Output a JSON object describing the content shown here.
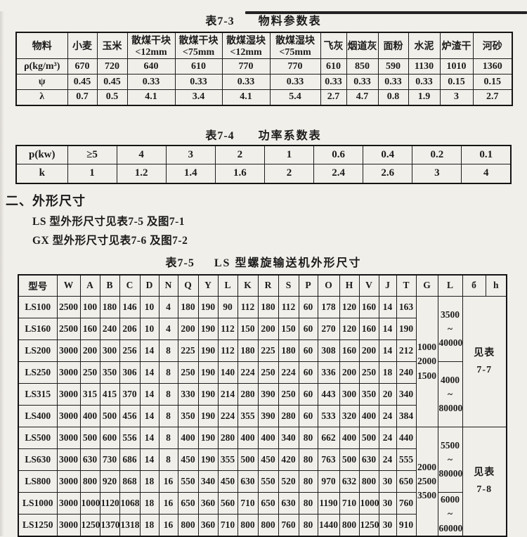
{
  "page": {
    "paper_color": "#f1efea",
    "ink_color": "#1b1b1b"
  },
  "table_7_3": {
    "caption_label": "表7-3",
    "caption_title": "物料参数表",
    "header": [
      [
        "物料"
      ],
      [
        "小麦"
      ],
      [
        "玉米"
      ],
      [
        "散煤干块",
        "<12mm"
      ],
      [
        "散煤干块",
        "<75mm"
      ],
      [
        "散煤湿块",
        "<12mm"
      ],
      [
        "散煤湿块",
        "<75mm"
      ],
      [
        "飞灰"
      ],
      [
        "烟道灰"
      ],
      [
        "面粉"
      ],
      [
        "水泥"
      ],
      [
        "炉渣干"
      ],
      [
        "河砂"
      ]
    ],
    "rows": [
      [
        "ρ(kg/m³)",
        "670",
        "720",
        "640",
        "610",
        "770",
        "770",
        "610",
        "850",
        "590",
        "1130",
        "1010",
        "1360"
      ],
      [
        "ψ",
        "0.45",
        "0.45",
        "0.33",
        "0.33",
        "0.33",
        "0.33",
        "0.33",
        "0.33",
        "0.33",
        "0.33",
        "0.15",
        "0.15"
      ],
      [
        "λ",
        "0.7",
        "0.5",
        "4.1",
        "3.4",
        "4.1",
        "5.4",
        "2.7",
        "4.7",
        "0.8",
        "1.9",
        "3",
        "2.7"
      ]
    ]
  },
  "table_7_4": {
    "caption_label": "表7-4",
    "caption_title": "功率系数表",
    "rows": [
      [
        "p(kw)",
        "≥5",
        "4",
        "3",
        "2",
        "1",
        "0.6",
        "0.4",
        "0.2",
        "0.1"
      ],
      [
        "k",
        "1",
        "1.2",
        "1.4",
        "1.6",
        "2",
        "2.4",
        "2.6",
        "3",
        "4"
      ]
    ]
  },
  "section": {
    "heading": "二、外形尺寸",
    "ref_ls": "LS 型外形尺寸见表7-5 及图7-1",
    "ref_gx": "GX 型外形尺寸见表7-6 及图7-2"
  },
  "table_7_5": {
    "caption_label": "表7-5",
    "caption_title": "LS 型螺旋输送机外形尺寸",
    "header": [
      "型号",
      "W",
      "A",
      "B",
      "C",
      "D",
      "N",
      "Q",
      "Y",
      "L",
      "K",
      "R",
      "S",
      "P",
      "O",
      "H",
      "V",
      "J",
      "T",
      "G",
      "L",
      "б",
      "h"
    ],
    "rows": [
      [
        "LS100",
        "2500",
        "100",
        "180",
        "146",
        "10",
        "4",
        "180",
        "190",
        "90",
        "112",
        "180",
        "112",
        "60",
        "178",
        "120",
        "160",
        "14",
        "163"
      ],
      [
        "LS160",
        "2500",
        "160",
        "240",
        "206",
        "10",
        "4",
        "200",
        "190",
        "112",
        "150",
        "200",
        "150",
        "60",
        "270",
        "120",
        "160",
        "14",
        "190"
      ],
      [
        "LS200",
        "3000",
        "200",
        "300",
        "256",
        "14",
        "8",
        "225",
        "190",
        "112",
        "180",
        "225",
        "180",
        "60",
        "308",
        "160",
        "200",
        "14",
        "212"
      ],
      [
        "LS250",
        "3000",
        "250",
        "350",
        "306",
        "14",
        "8",
        "250",
        "190",
        "140",
        "224",
        "250",
        "224",
        "60",
        "336",
        "200",
        "250",
        "18",
        "240"
      ],
      [
        "LS315",
        "3000",
        "315",
        "415",
        "370",
        "14",
        "8",
        "330",
        "190",
        "214",
        "280",
        "390",
        "250",
        "60",
        "443",
        "300",
        "350",
        "20",
        "340"
      ],
      [
        "LS400",
        "3000",
        "400",
        "500",
        "456",
        "14",
        "8",
        "350",
        "190",
        "224",
        "355",
        "390",
        "280",
        "60",
        "533",
        "320",
        "400",
        "24",
        "384"
      ],
      [
        "LS500",
        "3000",
        "500",
        "600",
        "556",
        "14",
        "8",
        "400",
        "190",
        "280",
        "400",
        "400",
        "340",
        "80",
        "662",
        "400",
        "500",
        "24",
        "440"
      ],
      [
        "LS630",
        "3000",
        "630",
        "730",
        "686",
        "14",
        "8",
        "450",
        "190",
        "355",
        "500",
        "450",
        "420",
        "80",
        "763",
        "500",
        "630",
        "24",
        "555"
      ],
      [
        "LS800",
        "3000",
        "800",
        "920",
        "868",
        "18",
        "16",
        "550",
        "340",
        "450",
        "630",
        "550",
        "520",
        "80",
        "970",
        "632",
        "800",
        "30",
        "650"
      ],
      [
        "LS1000",
        "3000",
        "1000",
        "1120",
        "1068",
        "18",
        "16",
        "650",
        "360",
        "560",
        "710",
        "650",
        "630",
        "80",
        "1190",
        "710",
        "1000",
        "30",
        "760"
      ],
      [
        "LS1250",
        "3000",
        "1250",
        "1370",
        "1318",
        "18",
        "16",
        "800",
        "360",
        "710",
        "800",
        "800",
        "760",
        "80",
        "1440",
        "800",
        "1250",
        "30",
        "910"
      ]
    ],
    "span_cells": [
      {
        "row": 0,
        "slot": 0,
        "rowspan": 6,
        "colspan": 1,
        "lines": [
          "1000",
          "2000",
          "1500"
        ],
        "kind": "span-cell",
        "name": "g-range-upper"
      },
      {
        "row": 0,
        "slot": 1,
        "rowspan": 3,
        "colspan": 1,
        "lines": [
          "3500",
          "~",
          "40000"
        ],
        "kind": "span-cell",
        "name": "length-range-1"
      },
      {
        "row": 0,
        "slot": 2,
        "rowspan": 6,
        "colspan": 2,
        "lines": [
          "见表",
          "7-7"
        ],
        "kind": "see-cell",
        "name": "see-table-7-7"
      },
      {
        "row": 3,
        "slot": 1,
        "rowspan": 3,
        "colspan": 1,
        "lines": [
          "4000",
          "~",
          "80000"
        ],
        "kind": "span-cell",
        "name": "length-range-2"
      },
      {
        "row": 6,
        "slot": 0,
        "rowspan": 5,
        "colspan": 1,
        "lines": [
          "2000",
          "2500",
          "3500"
        ],
        "kind": "span-cell",
        "name": "g-range-lower"
      },
      {
        "row": 6,
        "slot": 1,
        "rowspan": 3,
        "colspan": 1,
        "lines": [
          "5500",
          "~",
          "80000"
        ],
        "kind": "span-cell",
        "name": "length-range-3"
      },
      {
        "row": 6,
        "slot": 2,
        "rowspan": 5,
        "colspan": 2,
        "lines": [
          "见表",
          "7-8"
        ],
        "kind": "see-cell",
        "name": "see-table-7-8"
      },
      {
        "row": 9,
        "slot": 1,
        "rowspan": 2,
        "colspan": 1,
        "lines": [
          "6000",
          "~",
          "60000"
        ],
        "kind": "span-cell",
        "name": "length-range-4"
      }
    ]
  }
}
